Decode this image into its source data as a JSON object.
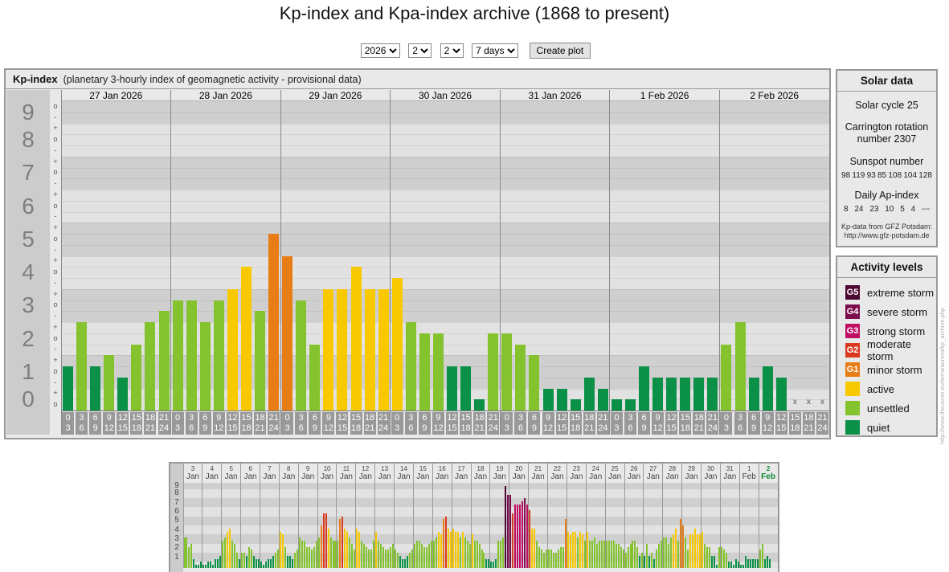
{
  "title": "Kp-index and Kpa-index archive (1868 to present)",
  "controls": {
    "year": "2026",
    "month": "2",
    "day": "2",
    "range": "7 days",
    "submit_label": "Create plot"
  },
  "watermark": "http://www.theusner.eu/terra/aurora/kp_archive.php",
  "colors": {
    "quiet": "#0a9147",
    "unsettled": "#84c32d",
    "active": "#f8c800",
    "g1": "#e87d16",
    "g2": "#d93a20",
    "g3": "#c00d64",
    "g4": "#7c0d4e",
    "g5": "#4c082f",
    "band_light": "#e2e2e2",
    "band_dark": "#cfcfcf",
    "highlight_green": "#0c8a33"
  },
  "band_levels": [
    "quiet",
    "quiet",
    "unsettled",
    "unsettled",
    "active",
    "g1",
    "g2",
    "g3",
    "g4",
    "g5"
  ],
  "activity_levels": {
    "title": "Activity levels",
    "items": [
      {
        "badge": "G5",
        "color": "#4c082f",
        "label": "extreme storm"
      },
      {
        "badge": "G4",
        "color": "#7c0d4e",
        "label": "severe storm"
      },
      {
        "badge": "G3",
        "color": "#c00d64",
        "label": "strong storm"
      },
      {
        "badge": "G2",
        "color": "#d93a20",
        "label": "moderate storm"
      },
      {
        "badge": "G1",
        "color": "#e87d16",
        "label": "minor storm"
      },
      {
        "badge": null,
        "color": "#f8c800",
        "label": "active"
      },
      {
        "badge": null,
        "color": "#84c32d",
        "label": "unsettled"
      },
      {
        "badge": null,
        "color": "#0a9147",
        "label": "quiet"
      }
    ]
  },
  "solar_data": {
    "title": "Solar data",
    "cycle": "Solar cycle 25",
    "carrington": "Carrington rotation number 2307",
    "sunspot_label": "Sunspot number",
    "sunspot_values": [
      "98",
      "119",
      "93",
      "85",
      "108",
      "104",
      "128"
    ],
    "ap_label": "Daily Ap-index",
    "ap_values": [
      "8",
      "24",
      "23",
      "10",
      "5",
      "4",
      "---"
    ],
    "source_line1": "Kp-data from GFZ Potsdam:",
    "source_line2": "http://www.gfz-potsdam.de"
  },
  "chart_data": [
    {
      "type": "bar",
      "id": "kp-main",
      "title": "Kp-index",
      "subtitle": "(planetary 3-hourly index of geomagnetic activity - provisional data)",
      "ylabel": "Kp index (0-9 in thirds: -, o, +)",
      "ylim": [
        0,
        9
      ],
      "y_ticks": [
        "9",
        "8",
        "7",
        "6",
        "5",
        "4",
        "3",
        "2",
        "1",
        "0"
      ],
      "sub_labels": [
        "o",
        "-",
        "+"
      ],
      "hour_bins": [
        [
          "0",
          "3"
        ],
        [
          "3",
          "6"
        ],
        [
          "6",
          "9"
        ],
        [
          "9",
          "12"
        ],
        [
          "12",
          "15"
        ],
        [
          "15",
          "18"
        ],
        [
          "18",
          "21"
        ],
        [
          "21",
          "24"
        ]
      ],
      "missing_marker": "x",
      "days": [
        {
          "date": "27 Jan 2026",
          "kp": [
            "1o",
            "2+",
            "1o",
            "1+",
            "1-",
            "2-",
            "2+",
            "3-"
          ]
        },
        {
          "date": "28 Jan 2026",
          "kp": [
            "3o",
            "3o",
            "2+",
            "3o",
            "3+",
            "4o",
            "3-",
            "5o"
          ]
        },
        {
          "date": "29 Jan 2026",
          "kp": [
            "4+",
            "3o",
            "2-",
            "3+",
            "3+",
            "4o",
            "3+",
            "3+"
          ]
        },
        {
          "date": "30 Jan 2026",
          "kp": [
            "4-",
            "2+",
            "2o",
            "2o",
            "1o",
            "1o",
            "0o",
            "2o"
          ]
        },
        {
          "date": "31 Jan 2026",
          "kp": [
            "2o",
            "2-",
            "1+",
            "0+",
            "0+",
            "0o",
            "1-",
            "0+"
          ]
        },
        {
          "date": "1 Feb 2026",
          "kp": [
            "0o",
            "0o",
            "1o",
            "1-",
            "1-",
            "1-",
            "1-",
            "1-"
          ]
        },
        {
          "date": "2 Feb 2026",
          "kp": [
            "2-",
            "2+",
            "1-",
            "1o",
            "1-",
            null,
            null,
            null
          ]
        }
      ]
    },
    {
      "type": "bar",
      "id": "kp-overview",
      "title": "Kp overview 3 Jan - 2 Feb",
      "ylim": [
        0,
        9
      ],
      "y_ticks": [
        "9",
        "8",
        "7",
        "6",
        "5",
        "4",
        "3",
        "2",
        "1"
      ],
      "days": [
        {
          "day": "3",
          "month": "Jan",
          "kp": [
            "3o",
            "3o",
            "2o",
            "2+",
            "1-",
            "0o",
            "0o",
            "0+"
          ]
        },
        {
          "day": "4",
          "month": "Jan",
          "kp": [
            "0o",
            "0o",
            "0+",
            "0+",
            "0o",
            "1-",
            "1-",
            "1o"
          ]
        },
        {
          "day": "5",
          "month": "Jan",
          "kp": [
            "3-",
            "3o",
            "4-",
            "4o",
            "3-",
            "2+",
            "1+",
            "1-"
          ]
        },
        {
          "day": "6",
          "month": "Jan",
          "kp": [
            "1+",
            "1+",
            "1o",
            "2o",
            "2-",
            "1o",
            "1-",
            "1-"
          ]
        },
        {
          "day": "7",
          "month": "Jan",
          "kp": [
            "0+",
            "0o",
            "0+",
            "1-",
            "1-",
            "1o",
            "1+",
            "2-"
          ]
        },
        {
          "day": "8",
          "month": "Jan",
          "kp": [
            "4-",
            "3+",
            "2o",
            "1o",
            "1o",
            "1-",
            "1+",
            "2-"
          ]
        },
        {
          "day": "9",
          "month": "Jan",
          "kp": [
            "3o",
            "3-",
            "3-",
            "2o",
            "2o",
            "2-",
            "2o",
            "3-"
          ]
        },
        {
          "day": "10",
          "month": "Jan",
          "kp": [
            "3o",
            "4+",
            "6-",
            "6-",
            "4o",
            "3o",
            "3-",
            "3-"
          ]
        },
        {
          "day": "11",
          "month": "Jan",
          "kp": [
            "3-",
            "5o",
            "5+",
            "4o",
            "4-",
            "3o",
            "2+",
            "2-"
          ]
        },
        {
          "day": "12",
          "month": "Jan",
          "kp": [
            "4o",
            "4-",
            "3-",
            "2+",
            "2o",
            "2-",
            "2-",
            "3-"
          ]
        },
        {
          "day": "13",
          "month": "Jan",
          "kp": [
            "4-",
            "3-",
            "2+",
            "2o",
            "2-",
            "2-",
            "2o",
            "2+"
          ]
        },
        {
          "day": "14",
          "month": "Jan",
          "kp": [
            "2-",
            "1+",
            "1o",
            "1-",
            "1-",
            "1o",
            "1+",
            "2-"
          ]
        },
        {
          "day": "15",
          "month": "Jan",
          "kp": [
            "2+",
            "3-",
            "3-",
            "2+",
            "2o",
            "2o",
            "2+",
            "3-"
          ]
        },
        {
          "day": "16",
          "month": "Jan",
          "kp": [
            "3-",
            "3o",
            "4-",
            "3+",
            "5o",
            "5+",
            "4o",
            "4-"
          ]
        },
        {
          "day": "17",
          "month": "Jan",
          "kp": [
            "4o",
            "4-",
            "4-",
            "3o",
            "4-",
            "3o",
            "3-",
            "2+"
          ]
        },
        {
          "day": "18",
          "month": "Jan",
          "kp": [
            "3+",
            "3-",
            "3-",
            "2+",
            "2-",
            "1+",
            "1-",
            "1-"
          ]
        },
        {
          "day": "19",
          "month": "Jan",
          "kp": [
            "0+",
            "0+",
            "1-",
            "3-",
            "3-",
            "3o",
            "9-",
            "8-"
          ]
        },
        {
          "day": "20",
          "month": "Jan",
          "kp": [
            "8-",
            "6-",
            "7-",
            "7-",
            "7-",
            "7o",
            "7+",
            "7-"
          ]
        },
        {
          "day": "21",
          "month": "Jan",
          "kp": [
            "6o",
            "4o",
            "4o",
            "3-",
            "2o",
            "2-",
            "1+",
            "2-"
          ]
        },
        {
          "day": "22",
          "month": "Jan",
          "kp": [
            "2-",
            "2-",
            "1+",
            "1+",
            "2-",
            "2o",
            "2o",
            "5o"
          ]
        },
        {
          "day": "23",
          "month": "Jan",
          "kp": [
            "4-",
            "3+",
            "4-",
            "4-",
            "3o",
            "4-",
            "3+",
            "3-"
          ]
        },
        {
          "day": "24",
          "month": "Jan",
          "kp": [
            "4-",
            "3-",
            "3-",
            "3o",
            "2+",
            "3-",
            "3-",
            "3-"
          ]
        },
        {
          "day": "25",
          "month": "Jan",
          "kp": [
            "3-",
            "3-",
            "3-",
            "3-",
            "2+",
            "2+",
            "2o",
            "2-"
          ]
        },
        {
          "day": "26",
          "month": "Jan",
          "kp": [
            "1+",
            "2o",
            "2+",
            "3-",
            "3-",
            "2o",
            "1o",
            "1+"
          ]
        },
        {
          "day": "27",
          "month": "Jan",
          "kp": [
            "1o",
            "2+",
            "1o",
            "1+",
            "1-",
            "2-",
            "2+",
            "3-"
          ]
        },
        {
          "day": "28",
          "month": "Jan",
          "kp": [
            "3o",
            "3o",
            "2+",
            "3o",
            "3+",
            "4o",
            "3-",
            "5o"
          ]
        },
        {
          "day": "29",
          "month": "Jan",
          "kp": [
            "4+",
            "3o",
            "2-",
            "3+",
            "3+",
            "4o",
            "3+",
            "3+"
          ]
        },
        {
          "day": "30",
          "month": "Jan",
          "kp": [
            "4-",
            "2+",
            "2o",
            "2o",
            "1o",
            "1o",
            "0o",
            "2o"
          ]
        },
        {
          "day": "31",
          "month": "Jan",
          "kp": [
            "2o",
            "2-",
            "1+",
            "0+",
            "0+",
            "0o",
            "1-",
            "0+"
          ]
        },
        {
          "day": "1",
          "month": "Feb",
          "kp": [
            "0o",
            "0o",
            "1o",
            "1-",
            "1-",
            "1-",
            "1-",
            "1-"
          ]
        },
        {
          "day": "2",
          "month": "Feb",
          "kp": [
            "2-",
            "2+",
            "1-",
            "1o",
            "1-"
          ],
          "highlight": true
        }
      ]
    }
  ]
}
